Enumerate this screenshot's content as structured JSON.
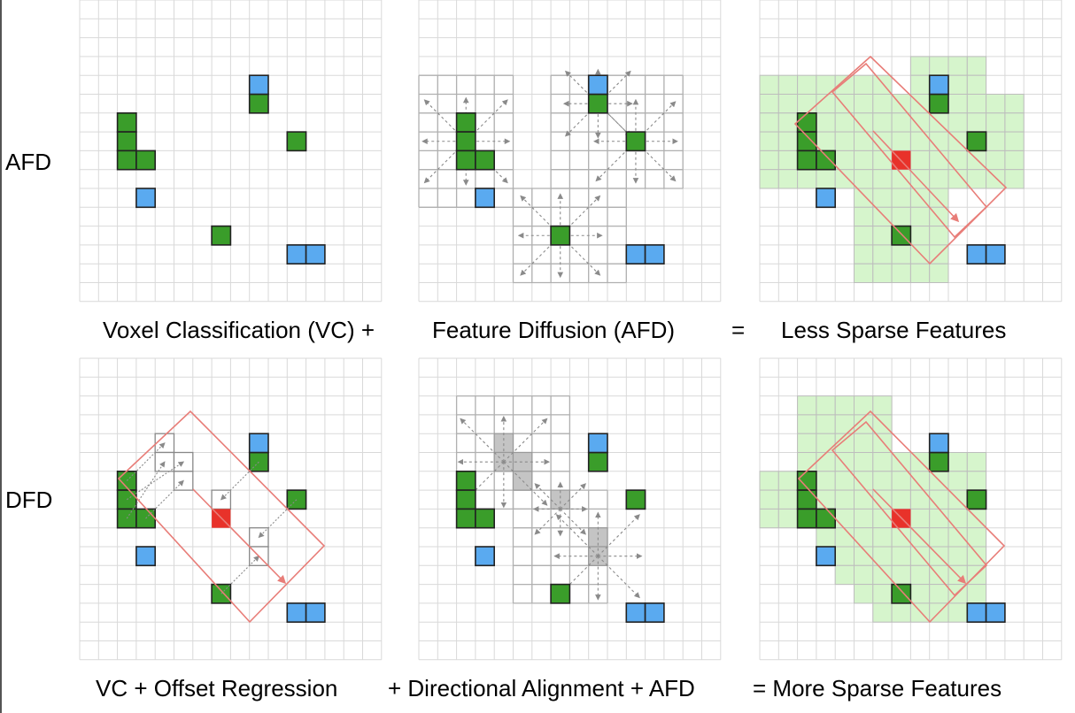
{
  "labels": {
    "row_afd": "AFD",
    "row_dfd": "DFD"
  },
  "captions_row1": {
    "voxel_classification": "Voxel Classification (VC) +",
    "feature_diffusion": "Feature Diffusion (AFD)",
    "equals": "=",
    "less_sparse": "Less Sparse Features"
  },
  "captions_row2": {
    "vc_offset": "VC + Offset Regression",
    "directional": "+ Directional Alignment + AFD",
    "more_sparse": "= More Sparse Features"
  },
  "colors": {
    "grid": "#d9d9d9",
    "green_voxel": "#3a9d2a",
    "blue_voxel": "#5aaaf0",
    "red_center": "#e8322a",
    "box_outline": "#e87d78",
    "diffused_fill": "#d6f5cc",
    "gray_voxel": "#c4c4c4",
    "arrow": "#8a8a8a"
  }
}
